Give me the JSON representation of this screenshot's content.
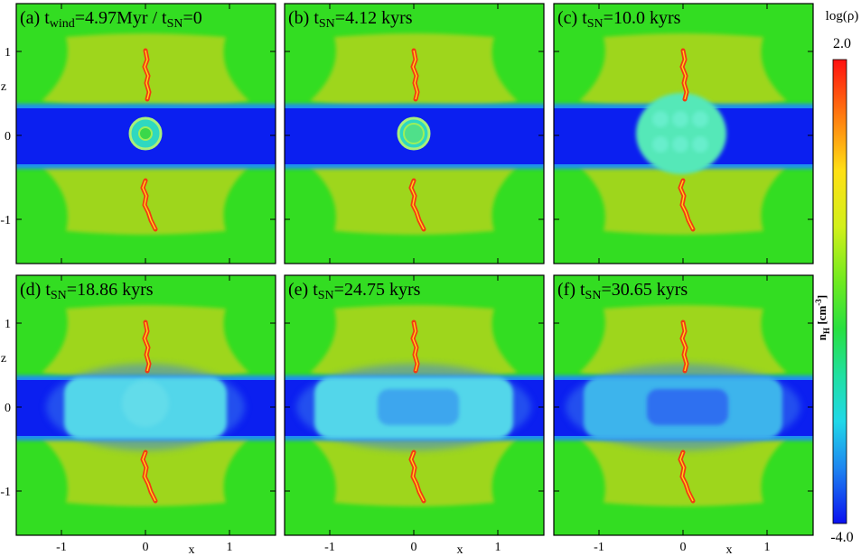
{
  "panels": [
    {
      "label_parts": [
        {
          "t": "(a) t"
        },
        {
          "t": "wind",
          "sub": true
        },
        {
          "t": "=4.97Myr / t"
        },
        {
          "t": "SN",
          "sub": true
        },
        {
          "t": "=0"
        }
      ],
      "stage": "a"
    },
    {
      "label_parts": [
        {
          "t": "(b) t"
        },
        {
          "t": "SN",
          "sub": true
        },
        {
          "t": "=4.12 kyrs"
        }
      ],
      "stage": "b"
    },
    {
      "label_parts": [
        {
          "t": "(c) t"
        },
        {
          "t": "SN",
          "sub": true
        },
        {
          "t": "=10.0 kyrs"
        }
      ],
      "stage": "c"
    },
    {
      "label_parts": [
        {
          "t": "(d) t"
        },
        {
          "t": "SN",
          "sub": true
        },
        {
          "t": "=18.86 kyrs"
        }
      ],
      "stage": "d"
    },
    {
      "label_parts": [
        {
          "t": "(e) t"
        },
        {
          "t": "SN",
          "sub": true
        },
        {
          "t": "=24.75 kyrs"
        }
      ],
      "stage": "e"
    },
    {
      "label_parts": [
        {
          "t": "(f) t"
        },
        {
          "t": "SN",
          "sub": true
        },
        {
          "t": "=30.65 kyrs"
        }
      ],
      "stage": "f"
    }
  ],
  "axes": {
    "x_ticks": [
      "-1",
      "0",
      "1"
    ],
    "z_ticks": [
      "1",
      "0",
      "-1"
    ],
    "x_label": "x",
    "z_label": "z"
  },
  "colorbar": {
    "title": "log(ρ)",
    "max": "2.0",
    "min": "-4.0",
    "side_label_parts": [
      {
        "t": "n"
      },
      {
        "t": "H",
        "sub": true
      },
      {
        "t": " [cm"
      },
      {
        "t": "-3",
        "sup": true
      },
      {
        "t": "]"
      }
    ]
  },
  "colors": {
    "ambient": "#33dd22",
    "lobe": "#9ed61c",
    "lobe_inner": "#b4d41a",
    "torus": "#0b1ff0",
    "torus_edge": "#1e8ef2",
    "bubble": "#55e8b8",
    "cavity": "#2f6ff0",
    "jet": "#f23a12",
    "jet_core": "#ffd11a"
  }
}
